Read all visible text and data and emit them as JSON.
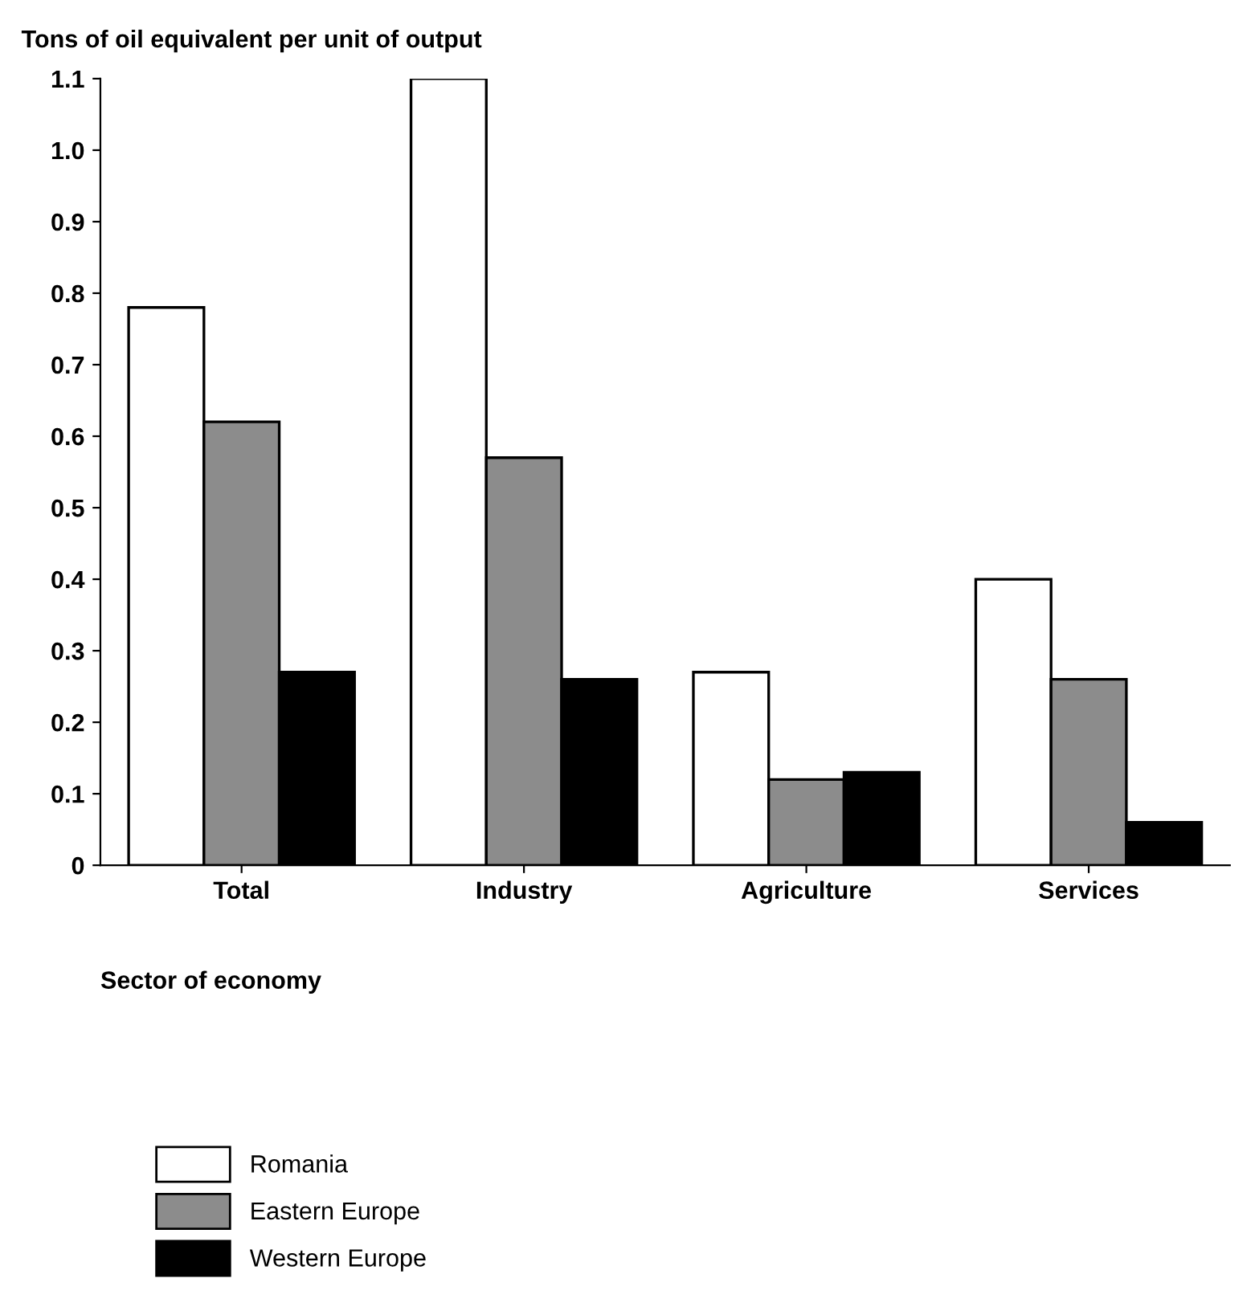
{
  "chart_data": {
    "type": "bar",
    "ylabel": "Tons of oil equivalent per unit of output",
    "xlabel": "Sector of economy",
    "categories": [
      "Total",
      "Industry",
      "Agriculture",
      "Services"
    ],
    "series": [
      {
        "name": "Romania",
        "color": "#ffffff",
        "values": [
          0.78,
          1.1,
          0.27,
          0.4
        ]
      },
      {
        "name": "Eastern Europe",
        "color": "#8c8c8c",
        "values": [
          0.62,
          0.57,
          0.12,
          0.26
        ]
      },
      {
        "name": "Western Europe",
        "color": "#000000",
        "values": [
          0.27,
          0.26,
          0.13,
          0.06
        ]
      }
    ],
    "ylim": [
      0,
      1.1
    ],
    "yticks": [
      0,
      0.1,
      0.2,
      0.3,
      0.4,
      0.5,
      0.6,
      0.7,
      0.8,
      0.9,
      {
        "value": 1.0,
        "label": "1.0"
      },
      1.1
    ],
    "grid": false,
    "legend": "bottom left"
  }
}
